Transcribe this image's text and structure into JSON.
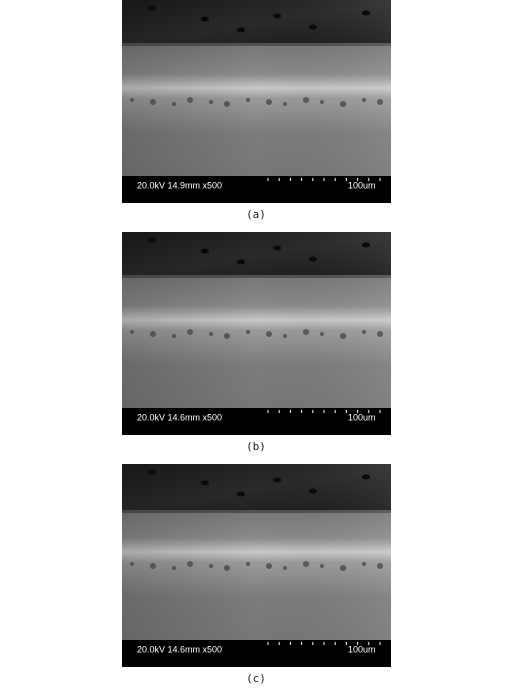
{
  "panels": [
    {
      "info": "20.0kV 14.9mm x500",
      "scale": "100um",
      "caption": "(a)"
    },
    {
      "info": "20.0kV 14.6mm x500",
      "scale": "100um",
      "caption": "(b)"
    },
    {
      "info": "20.0kV 14.6mm x500",
      "scale": "100um",
      "caption": "(c)"
    }
  ]
}
